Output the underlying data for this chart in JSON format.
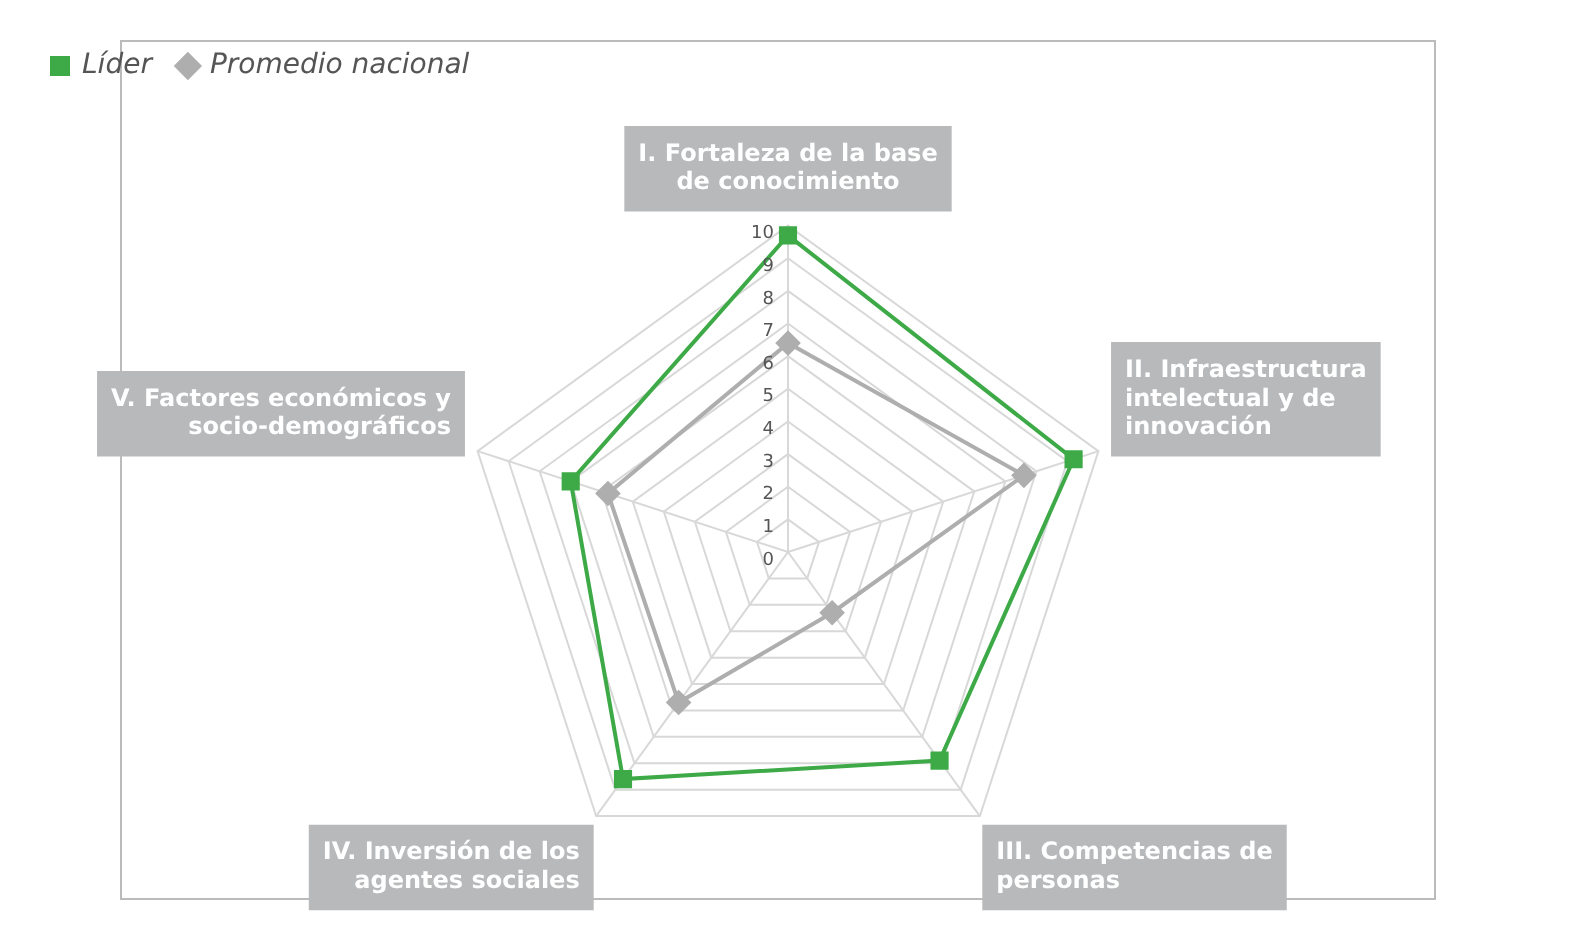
{
  "chart_data": {
    "type": "radar",
    "categories": [
      "I. Fortaleza de la base de conocimiento",
      "II. Infraestructura intelectual y de innovación",
      "III. Competencias de personas",
      "IV. Inversión de los agentes sociales",
      "V. Factores económicos y socio-demográficos"
    ],
    "series": [
      {
        "name": "Líder",
        "color": "#3daa47",
        "marker": "square",
        "values": [
          9.7,
          9.2,
          7.9,
          8.6,
          7.0
        ]
      },
      {
        "name": "Promedio nacional",
        "color": "#aeaeae",
        "marker": "diamond",
        "values": [
          6.4,
          7.6,
          2.3,
          5.7,
          5.8
        ]
      }
    ],
    "ylim": [
      0,
      10
    ],
    "yticks": [
      0,
      1,
      2,
      3,
      4,
      5,
      6,
      7,
      8,
      9,
      10
    ],
    "grid": true,
    "legend": "top left"
  }
}
